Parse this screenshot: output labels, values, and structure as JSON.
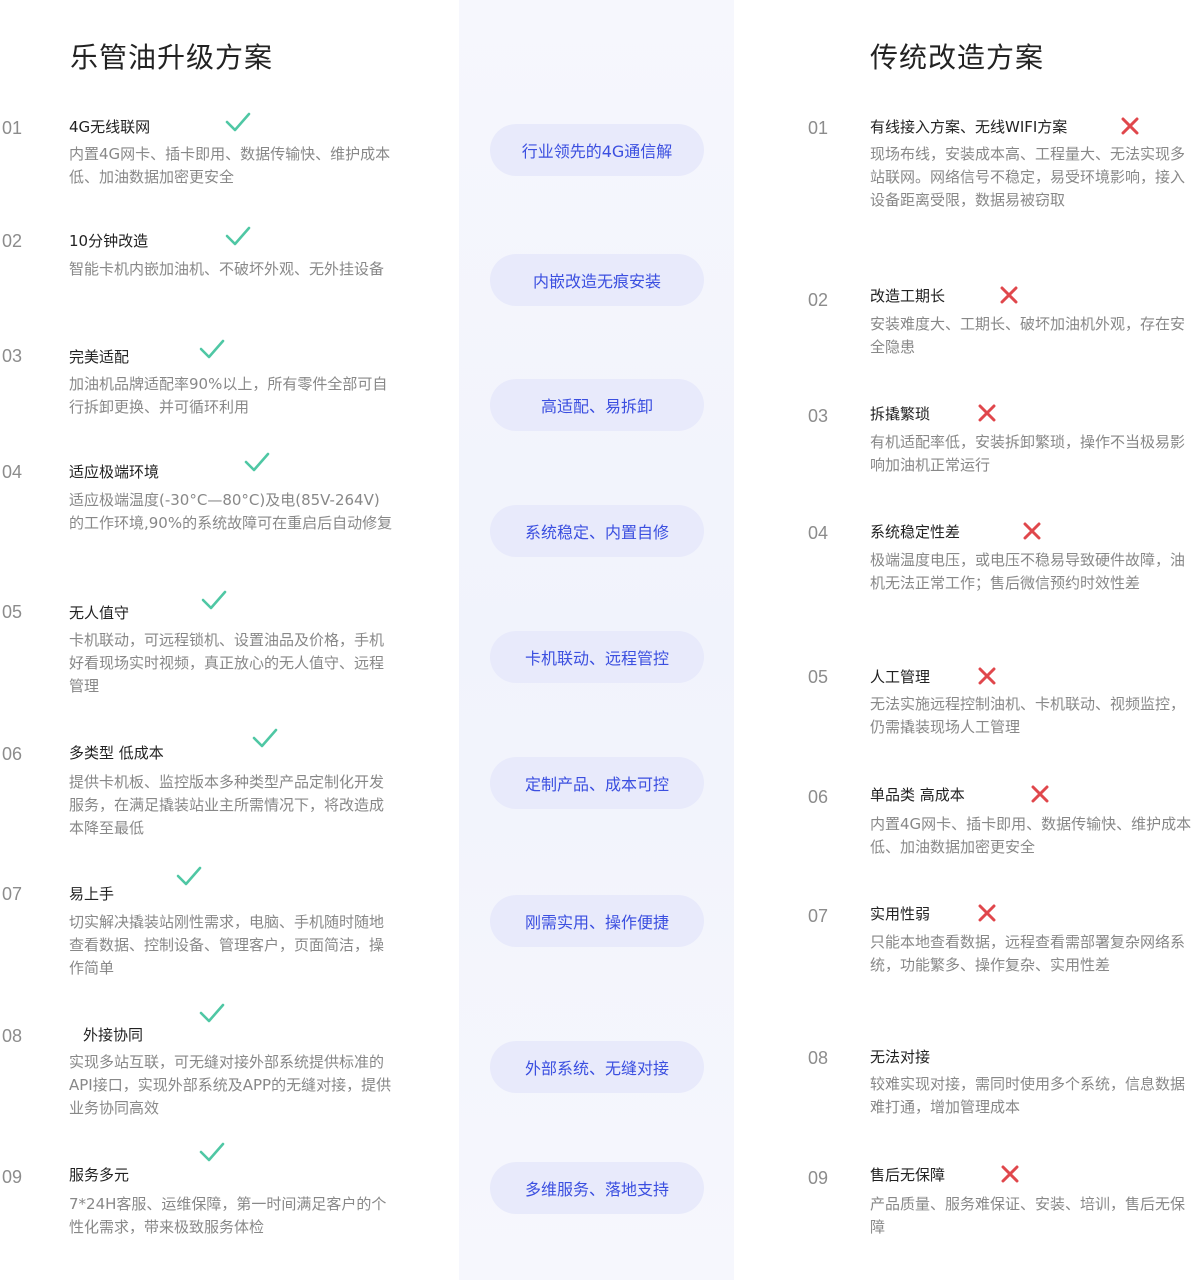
{
  "left": {
    "title": "乐管油升级方案",
    "items": [
      {
        "num": "01",
        "title": "4G无线联网",
        "desc": "内置4G网卡、插卡即用、数据传输快、维护成本低、加油数据加密更安全"
      },
      {
        "num": "02",
        "title": "10分钟改造",
        "desc": "智能卡机内嵌加油机、不破坏外观、无外挂设备"
      },
      {
        "num": "03",
        "title": "完美适配",
        "desc": "加油机品牌适配率90%以上，所有零件全部可自行拆卸更换、并可循环利用"
      },
      {
        "num": "04",
        "title": "适应极端环境",
        "desc": "适应极端温度(-30°C—80°C)及电(85V-264V)的工作环境,90%的系统故障可在重启后自动修复"
      },
      {
        "num": "05",
        "title": "无人值守",
        "desc": "卡机联动，可远程锁机、设置油品及价格，手机好看现场实时视频，真正放心的无人值守、远程管理"
      },
      {
        "num": "06",
        "title": "多类型 低成本",
        "desc": "提供卡机板、监控版本多种类型产品定制化开发服务，在满足撬装站业主所需情况下，将改造成本降至最低"
      },
      {
        "num": "07",
        "title": "易上手",
        "desc": "切实解决撬装站刚性需求，电脑、手机随时随地查看数据、控制设备、管理客户，页面简洁，操作简单"
      },
      {
        "num": "08",
        "title": "外接协同",
        "desc": "实现多站互联，可无缝对接外部系统提供标准的API接口，实现外部系统及APP的无缝对接，提供业务协同高效"
      },
      {
        "num": "09",
        "title": "服务多元",
        "desc": "7*24H客服、运维保障，第一时间满足客户的个性化需求，带来极致服务体检"
      }
    ]
  },
  "center": {
    "pills": [
      "行业领先的4G通信解",
      "内嵌改造无痕安装",
      "高适配、易拆卸",
      "系统稳定、内置自修",
      "卡机联动、远程管控",
      "定制产品、成本可控",
      "刚需实用、操作便捷",
      "外部系统、无缝对接",
      "多维服务、落地支持"
    ]
  },
  "right": {
    "title": "传统改造方案",
    "items": [
      {
        "num": "01",
        "title": "有线接入方案、无线WIFI方案",
        "desc": "现场布线，安装成本高、工程量大、无法实现多站联网。网络信号不稳定，易受环境影响，接入设备距离受限，数据易被窃取"
      },
      {
        "num": "02",
        "title": "改造工期长",
        "desc": "安装难度大、工期长、破坏加油机外观，存在安全隐患"
      },
      {
        "num": "03",
        "title": "拆撬繁琐",
        "desc": "有机适配率低，安装拆卸繁琐，操作不当极易影响加油机正常运行"
      },
      {
        "num": "04",
        "title": "系统稳定性差",
        "desc": "极端温度电压，或电压不稳易导致硬件故障，油机无法正常工作；售后微信预约时效性差"
      },
      {
        "num": "05",
        "title": "人工管理",
        "desc": "无法实施远程控制油机、卡机联动、视频监控，仍需撬装现场人工管理"
      },
      {
        "num": "06",
        "title": "单品类 高成本",
        "desc": "内置4G网卡、插卡即用、数据传输快、维护成本低、加油数据加密更安全"
      },
      {
        "num": "07",
        "title": "实用性弱",
        "desc": "只能本地查看数据，远程查看需部署复杂网络系统，功能繁多、操作复杂、实用性差"
      },
      {
        "num": "08",
        "title": "无法对接",
        "desc": "较难实现对接，需同时使用多个系统，信息数据难打通，增加管理成本"
      },
      {
        "num": "09",
        "title": "售后无保障",
        "desc": "产品质量、服务难保证、安装、培训，售后无保障"
      }
    ]
  },
  "colors": {
    "check": "#4fc7a4",
    "cross": "#e0474c",
    "pill_bg": "#e8eafb",
    "pill_text": "#3b4fe0"
  },
  "icons": {
    "check": "check-icon",
    "cross": "cross-icon"
  }
}
